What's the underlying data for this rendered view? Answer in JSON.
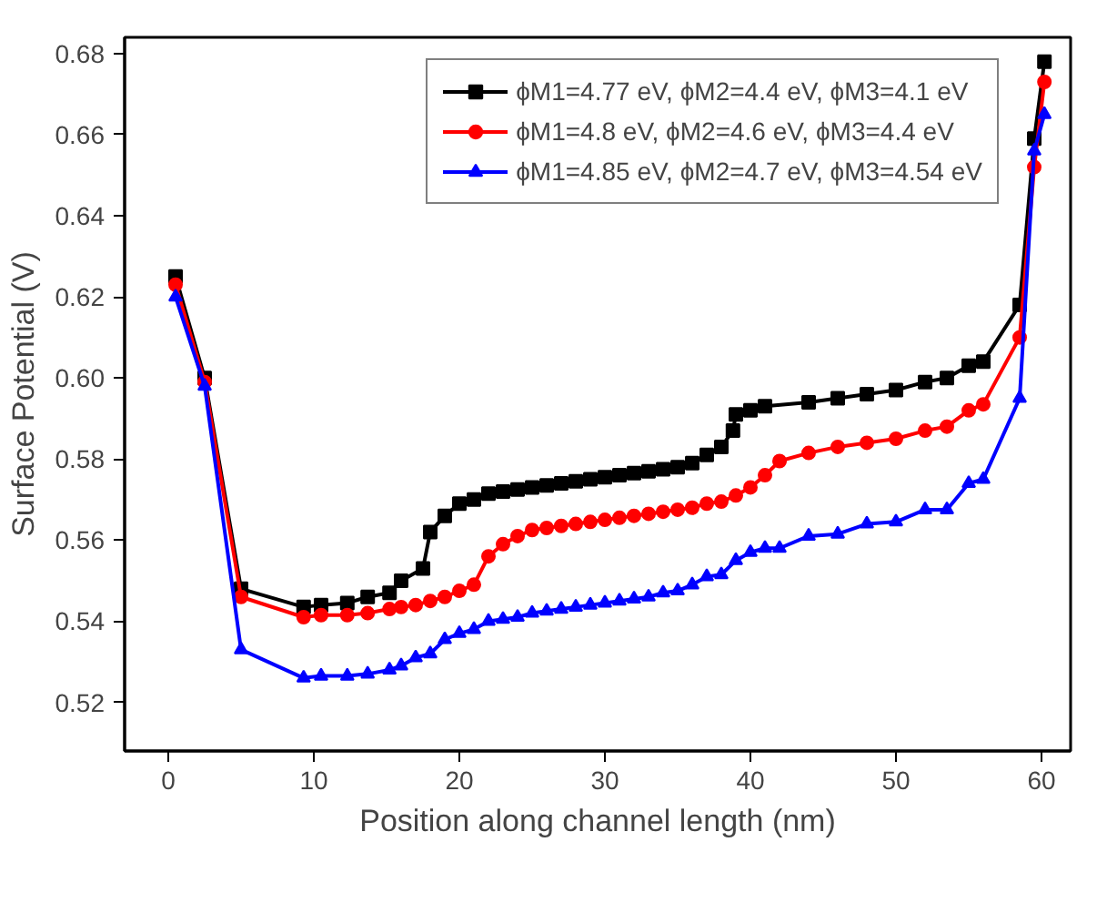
{
  "chart_data": {
    "type": "line",
    "xlabel": "Position along channel length (nm)",
    "ylabel": "Surface Potential (V)",
    "xlim": [
      -3,
      62
    ],
    "ylim": [
      0.508,
      0.684
    ],
    "xticks": [
      0,
      10,
      20,
      30,
      40,
      50,
      60
    ],
    "yticks": [
      0.52,
      0.54,
      0.56,
      0.58,
      {
        "value": 0.6,
        "label": "0.60"
      },
      0.62,
      0.64,
      0.66,
      0.68
    ],
    "grid": false,
    "legend": "top right",
    "line_style": "solid",
    "series": [
      {
        "name": "ϕM1=4.77 eV, ϕM2=4.4 eV, ϕM3=4.1 eV",
        "color": "#000000",
        "marker": "square",
        "x": [
          0.5,
          2.5,
          5,
          9.3,
          10.5,
          12.3,
          13.7,
          15.2,
          16,
          17.5,
          18,
          19,
          20,
          21,
          22,
          23,
          24,
          25,
          26,
          27,
          28,
          29,
          30,
          31,
          32,
          33,
          34,
          35,
          36,
          37,
          38,
          38.8,
          39,
          40,
          41,
          44,
          46,
          48,
          50,
          52,
          53.5,
          55,
          56,
          58.5,
          59.5,
          60.2
        ],
        "values": [
          0.625,
          0.6,
          0.548,
          0.5435,
          0.544,
          0.5445,
          0.546,
          0.547,
          0.55,
          0.553,
          0.562,
          0.566,
          0.569,
          0.57,
          0.5715,
          0.572,
          0.5725,
          0.573,
          0.5735,
          0.574,
          0.5745,
          0.575,
          0.5755,
          0.576,
          0.5765,
          0.577,
          0.5775,
          0.578,
          0.579,
          0.581,
          0.583,
          0.587,
          0.591,
          0.592,
          0.593,
          0.594,
          0.595,
          0.596,
          0.597,
          0.599,
          0.6,
          0.603,
          0.604,
          0.618,
          0.659,
          0.678
        ]
      },
      {
        "name": "ϕM1=4.8 eV, ϕM2=4.6 eV, ϕM3=4.4 eV",
        "color": "#ff0000",
        "marker": "circle",
        "x": [
          0.5,
          2.5,
          5,
          9.3,
          10.5,
          12.3,
          13.7,
          15.2,
          16,
          17,
          18,
          19,
          20,
          21,
          22,
          23,
          24,
          25,
          26,
          27,
          28,
          29,
          30,
          31,
          32,
          33,
          34,
          35,
          36,
          37,
          38,
          39,
          40,
          41,
          42,
          44,
          46,
          48,
          50,
          52,
          53.5,
          55,
          56,
          58.5,
          59.5,
          60.2
        ],
        "values": [
          0.623,
          0.599,
          0.546,
          0.541,
          0.5415,
          0.5415,
          0.542,
          0.543,
          0.5435,
          0.544,
          0.545,
          0.546,
          0.5475,
          0.549,
          0.556,
          0.559,
          0.561,
          0.5625,
          0.563,
          0.5635,
          0.564,
          0.5645,
          0.565,
          0.5655,
          0.566,
          0.5665,
          0.567,
          0.5675,
          0.568,
          0.569,
          0.5695,
          0.571,
          0.573,
          0.576,
          0.5795,
          0.5815,
          0.583,
          0.584,
          0.585,
          0.587,
          0.588,
          0.592,
          0.5935,
          0.61,
          0.652,
          0.673
        ]
      },
      {
        "name": "ϕM1=4.85 eV, ϕM2=4.7 eV, ϕM3=4.54 eV",
        "color": "#0000ff",
        "marker": "triangle",
        "x": [
          0.5,
          2.5,
          5,
          9.3,
          10.5,
          12.3,
          13.7,
          15.2,
          16,
          17,
          18,
          19,
          20,
          21,
          22,
          23,
          24,
          25,
          26,
          27,
          28,
          29,
          30,
          31,
          32,
          33,
          34,
          35,
          36,
          37,
          38,
          39,
          40,
          41,
          42,
          44,
          46,
          48,
          50,
          52,
          53.5,
          55,
          56,
          58.5,
          59.5,
          60.2
        ],
        "values": [
          0.62,
          0.598,
          0.533,
          0.526,
          0.5265,
          0.5265,
          0.527,
          0.528,
          0.529,
          0.531,
          0.532,
          0.5355,
          0.537,
          0.538,
          0.54,
          0.5405,
          0.541,
          0.542,
          0.5425,
          0.543,
          0.5435,
          0.544,
          0.5445,
          0.545,
          0.5455,
          0.546,
          0.547,
          0.5475,
          0.549,
          0.551,
          0.5515,
          0.555,
          0.557,
          0.558,
          0.558,
          0.561,
          0.5615,
          0.564,
          0.5645,
          0.5675,
          0.5675,
          0.574,
          0.575,
          0.595,
          0.656,
          0.665
        ]
      }
    ]
  }
}
